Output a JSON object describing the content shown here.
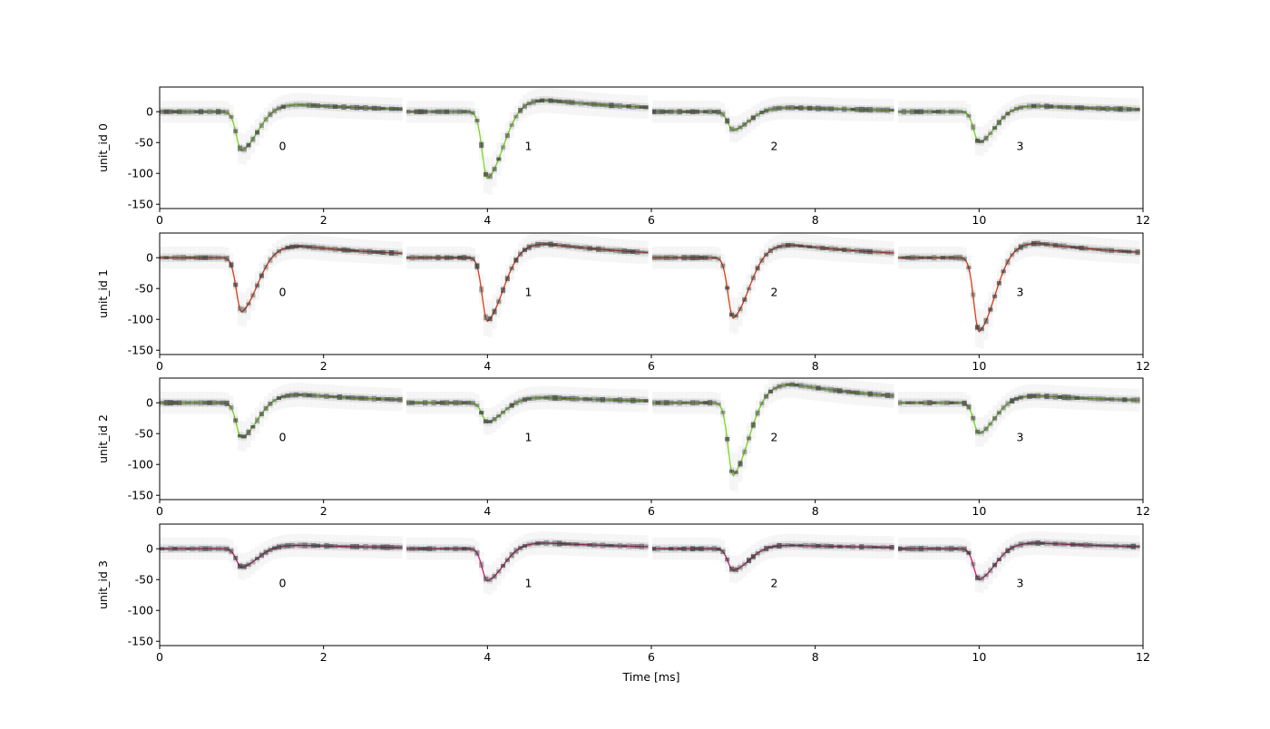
{
  "figure": {
    "xlabel": "Time [ms]"
  },
  "chart_data": {
    "type": "line",
    "x_ticks": [
      0,
      2,
      4,
      6,
      8,
      10,
      12
    ],
    "y_ticks": [
      0,
      -50,
      -100,
      -150
    ],
    "xlim": [
      0,
      12
    ],
    "ylim": [
      -157,
      40
    ],
    "channel_labels": [
      "0",
      "1",
      "2",
      "3"
    ],
    "channel_label_offset_ms": 1.5,
    "channel_label_y": -55,
    "segment_ms": 3,
    "trough_ms": 1.0,
    "density_color": "#3a3a3a",
    "panels": [
      {
        "ylabel": "unit_id 0",
        "color": "#7fe020",
        "channels": [
          {
            "channel": "0",
            "trough": -63,
            "peak": 12
          },
          {
            "channel": "1",
            "trough": -108,
            "peak": 20
          },
          {
            "channel": "2",
            "trough": -30,
            "peak": 7
          },
          {
            "channel": "3",
            "trough": -50,
            "peak": 10
          }
        ]
      },
      {
        "ylabel": "unit_id 1",
        "color": "#e8401a",
        "channels": [
          {
            "channel": "0",
            "trough": -88,
            "peak": 20
          },
          {
            "channel": "1",
            "trough": -103,
            "peak": 24
          },
          {
            "channel": "2",
            "trough": -98,
            "peak": 22
          },
          {
            "channel": "3",
            "trough": -120,
            "peak": 25
          }
        ]
      },
      {
        "ylabel": "unit_id 2",
        "color": "#7fe020",
        "channels": [
          {
            "channel": "0",
            "trough": -57,
            "peak": 14
          },
          {
            "channel": "1",
            "trough": -32,
            "peak": 9
          },
          {
            "channel": "2",
            "trough": -118,
            "peak": 32
          },
          {
            "channel": "3",
            "trough": -50,
            "peak": 12
          }
        ]
      },
      {
        "ylabel": "unit_id 3",
        "color": "#e0207a",
        "channels": [
          {
            "channel": "0",
            "trough": -30,
            "peak": 6
          },
          {
            "channel": "1",
            "trough": -52,
            "peak": 10
          },
          {
            "channel": "2",
            "trough": -35,
            "peak": 6
          },
          {
            "channel": "3",
            "trough": -50,
            "peak": 10
          }
        ]
      }
    ]
  }
}
